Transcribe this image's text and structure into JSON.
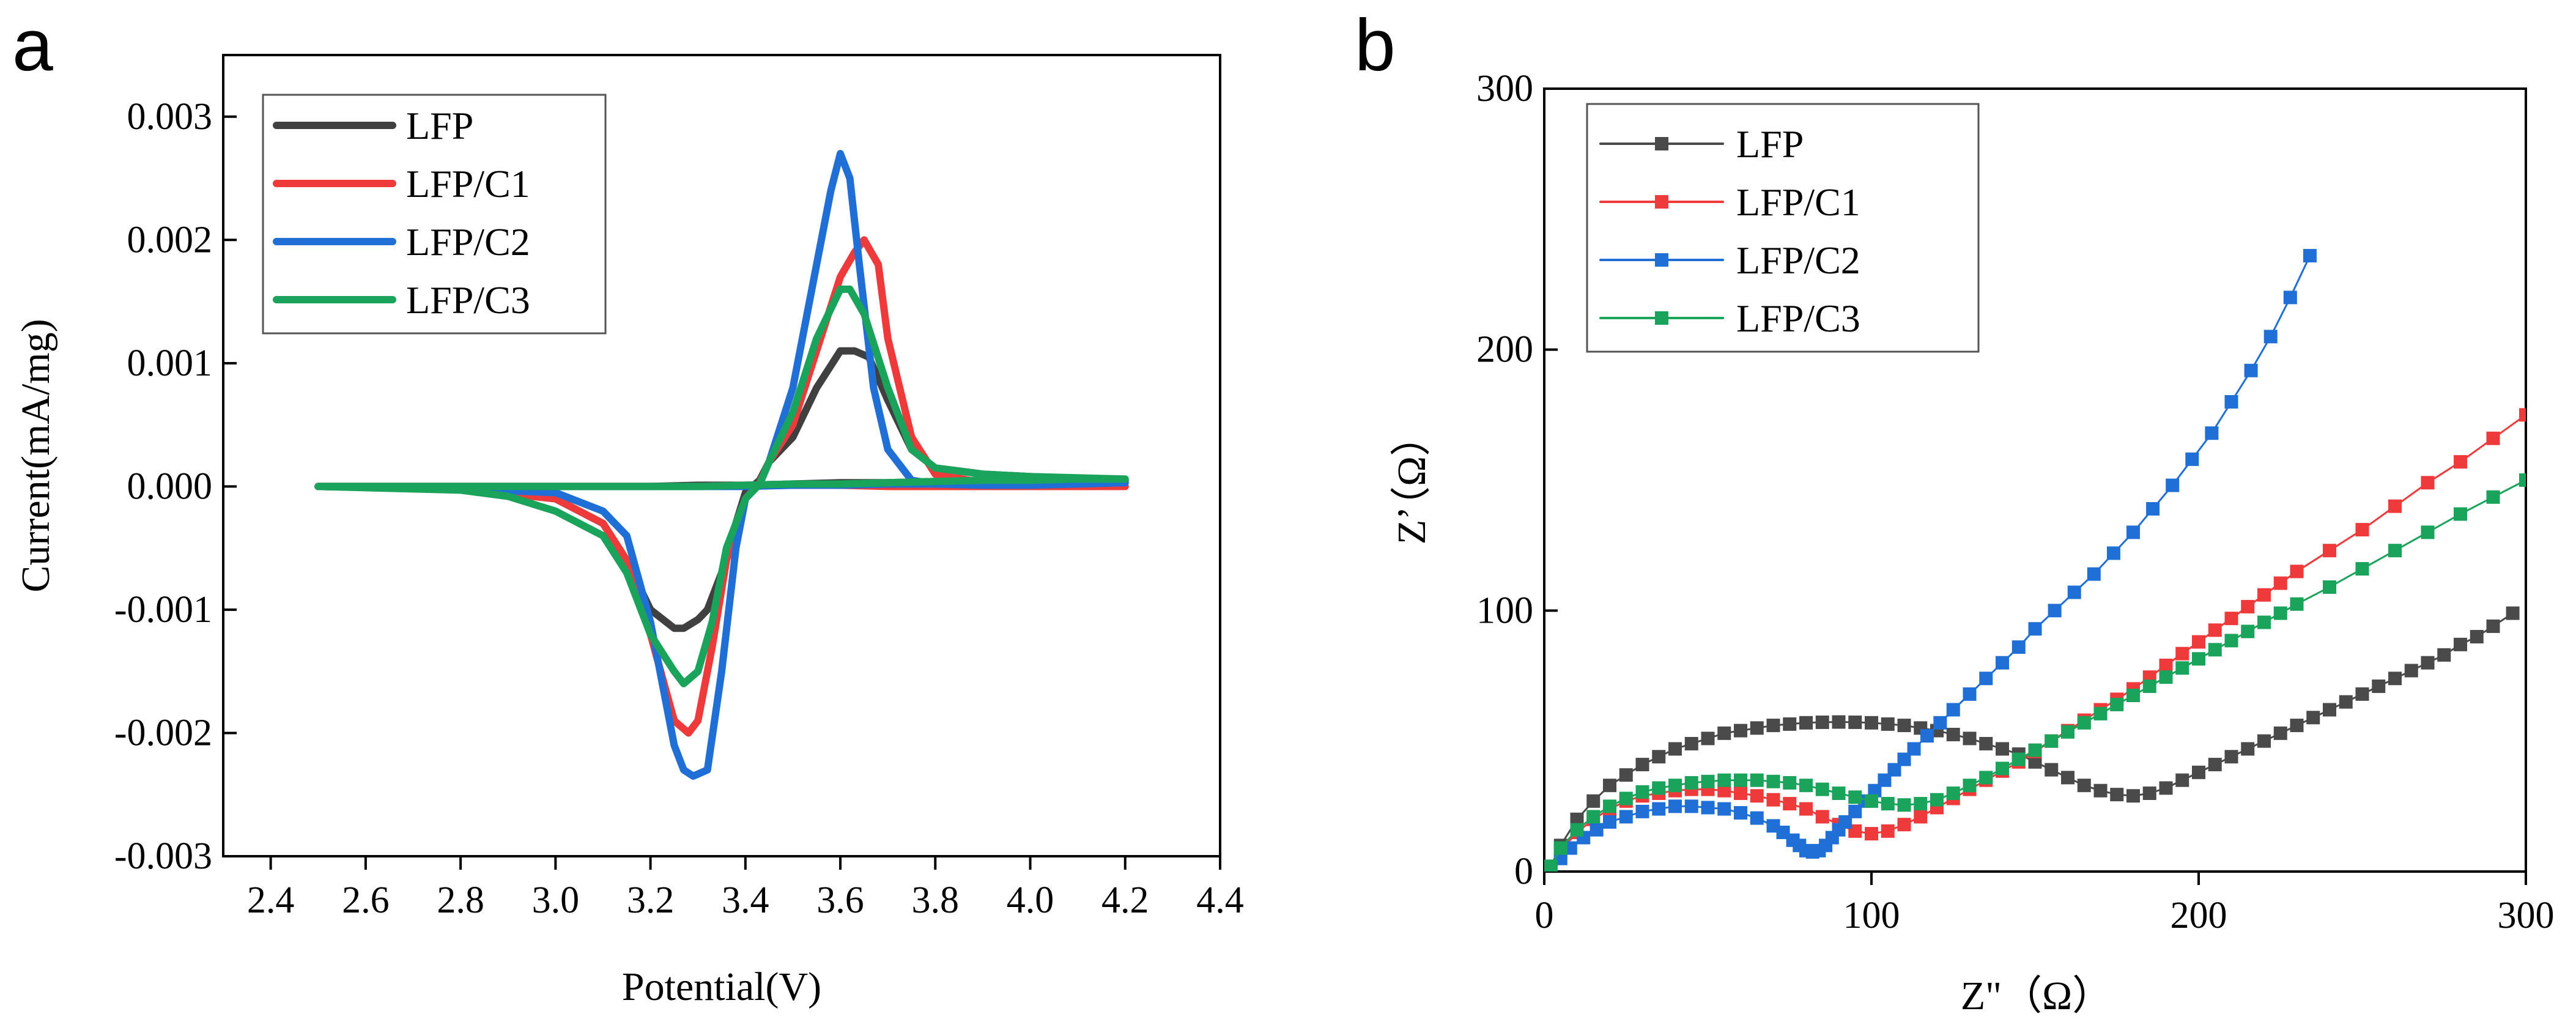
{
  "chart_data": [
    {
      "panel_label": "a",
      "type": "line",
      "xlabel": "Potential(V)",
      "ylabel": "Current(mA/mg)",
      "xlim": [
        2.3,
        4.4
      ],
      "ylim": [
        -0.003,
        0.0035
      ],
      "xticks": [
        "2.4",
        "2.6",
        "2.8",
        "3.0",
        "3.2",
        "3.4",
        "3.6",
        "3.8",
        "4.0",
        "4.2",
        "4.4"
      ],
      "yticks": [
        "-0.003",
        "-0.002",
        "-0.001",
        "0.000",
        "0.001",
        "0.002",
        "0.003"
      ],
      "legend_position": "top-left",
      "series": [
        {
          "name": "LFP",
          "color": "#404040",
          "x": [
            2.5,
            2.8,
            3.0,
            3.1,
            3.15,
            3.2,
            3.25,
            3.27,
            3.3,
            3.32,
            3.35,
            3.38,
            3.4,
            3.43,
            3.45,
            3.5,
            3.55,
            3.6,
            3.63,
            3.66,
            3.7,
            3.75,
            3.8,
            3.9,
            4.0,
            4.1,
            4.2,
            4.1,
            4.0,
            3.9,
            3.8,
            3.7,
            3.6,
            3.5,
            3.4,
            3.3,
            3.2,
            3.0,
            2.8,
            2.5
          ],
          "y": [
            0.0,
            -2e-05,
            -0.0001,
            -0.0003,
            -0.0006,
            -0.001,
            -0.00115,
            -0.00115,
            -0.00108,
            -0.001,
            -0.0007,
            -0.0003,
            -5e-05,
            5e-05,
            0.0002,
            0.0004,
            0.0008,
            0.0011,
            0.0011,
            0.00105,
            0.0007,
            0.0003,
            0.00015,
            0.0001,
            8e-05,
            6e-05,
            5e-05,
            5e-05,
            5e-05,
            4e-05,
            4e-05,
            3e-05,
            3e-05,
            2e-05,
            1e-05,
            1e-05,
            0.0,
            0.0,
            0.0,
            0.0
          ]
        },
        {
          "name": "LFP/C1",
          "color": "#ee3a3a",
          "x": [
            2.5,
            2.8,
            3.0,
            3.1,
            3.15,
            3.2,
            3.25,
            3.28,
            3.3,
            3.33,
            3.36,
            3.4,
            3.43,
            3.45,
            3.5,
            3.55,
            3.6,
            3.63,
            3.65,
            3.68,
            3.7,
            3.75,
            3.8,
            3.9,
            4.0,
            4.1,
            4.2,
            4.1,
            4.0,
            3.9,
            3.8,
            3.7,
            3.6,
            3.5,
            3.4,
            3.3,
            3.2,
            3.0,
            2.8,
            2.5
          ],
          "y": [
            0.0,
            -2e-05,
            -0.0001,
            -0.0003,
            -0.0006,
            -0.0012,
            -0.0019,
            -0.002,
            -0.0019,
            -0.0013,
            -0.0006,
            -0.0001,
            3e-05,
            0.0002,
            0.0005,
            0.0011,
            0.0017,
            0.0019,
            0.002,
            0.0018,
            0.0012,
            0.0004,
            0.0001,
            3e-05,
            2e-05,
            1e-05,
            0.0,
            0.0,
            0.0,
            0.0,
            0.0,
            0.0,
            1e-05,
            1e-05,
            1e-05,
            0.0,
            0.0,
            0.0,
            0.0,
            0.0
          ]
        },
        {
          "name": "LFP/C2",
          "color": "#1f6fd6",
          "x": [
            2.5,
            2.8,
            3.0,
            3.1,
            3.15,
            3.2,
            3.25,
            3.27,
            3.29,
            3.32,
            3.35,
            3.38,
            3.4,
            3.43,
            3.45,
            3.5,
            3.55,
            3.58,
            3.6,
            3.62,
            3.64,
            3.67,
            3.7,
            3.75,
            3.8,
            3.9,
            4.0,
            4.1,
            4.2,
            4.1,
            4.0,
            3.9,
            3.8,
            3.7,
            3.6,
            3.5,
            3.4,
            3.3,
            3.2,
            3.0,
            2.8,
            2.5
          ],
          "y": [
            0.0,
            -2e-05,
            -5e-05,
            -0.0002,
            -0.0004,
            -0.0011,
            -0.0021,
            -0.0023,
            -0.00235,
            -0.0023,
            -0.0015,
            -0.0005,
            -0.0001,
            2e-05,
            0.0002,
            0.0008,
            0.0018,
            0.0024,
            0.0027,
            0.0025,
            0.0018,
            0.0008,
            0.0003,
            5e-05,
            2e-05,
            1e-05,
            1e-05,
            2e-05,
            3e-05,
            3e-05,
            3e-05,
            2e-05,
            2e-05,
            2e-05,
            1e-05,
            1e-05,
            0.0,
            0.0,
            0.0,
            0.0,
            0.0,
            0.0
          ]
        },
        {
          "name": "LFP/C3",
          "color": "#1aa35a",
          "x": [
            2.5,
            2.8,
            2.9,
            3.0,
            3.1,
            3.15,
            3.2,
            3.25,
            3.27,
            3.3,
            3.33,
            3.36,
            3.4,
            3.43,
            3.45,
            3.5,
            3.55,
            3.6,
            3.62,
            3.65,
            3.7,
            3.75,
            3.8,
            3.9,
            4.0,
            4.1,
            4.2,
            4.1,
            4.0,
            3.9,
            3.8,
            3.7,
            3.6,
            3.5,
            3.4,
            3.3,
            3.2,
            3.0,
            2.8,
            2.5
          ],
          "y": [
            0.0,
            -3e-05,
            -8e-05,
            -0.0002,
            -0.0004,
            -0.0007,
            -0.0012,
            -0.0015,
            -0.0016,
            -0.0015,
            -0.0011,
            -0.0005,
            -0.0001,
            2e-05,
            0.0002,
            0.0006,
            0.0012,
            0.0016,
            0.0016,
            0.0014,
            0.0008,
            0.0003,
            0.00015,
            0.0001,
            8e-05,
            7e-05,
            6e-05,
            6e-05,
            5e-05,
            5e-05,
            4e-05,
            3e-05,
            2e-05,
            2e-05,
            1e-05,
            0.0,
            0.0,
            0.0,
            0.0,
            0.0
          ]
        }
      ]
    },
    {
      "panel_label": "b",
      "type": "scatter",
      "xlabel": "Z\"（Ω）",
      "ylabel": "Z’（Ω）",
      "xlim": [
        0,
        300
      ],
      "ylim": [
        0,
        300
      ],
      "xticks": [
        "0",
        "100",
        "200",
        "300"
      ],
      "yticks": [
        "0",
        "100",
        "200",
        "300"
      ],
      "legend_position": "top-left",
      "series": [
        {
          "name": "LFP",
          "color": "#4a4a4a",
          "x": [
            2,
            5,
            10,
            15,
            20,
            25,
            30,
            35,
            40,
            45,
            50,
            55,
            60,
            65,
            70,
            75,
            80,
            85,
            90,
            95,
            100,
            105,
            110,
            115,
            120,
            125,
            130,
            135,
            140,
            145,
            150,
            155,
            160,
            165,
            170,
            175,
            180,
            185,
            190,
            195,
            200,
            205,
            210,
            215,
            220,
            225,
            230,
            235,
            240,
            245,
            250,
            255,
            260,
            265,
            270,
            275,
            280,
            285,
            290,
            296
          ],
          "y": [
            2,
            10,
            20,
            27,
            33,
            37,
            41,
            44,
            47,
            49,
            51,
            53,
            54,
            55,
            56,
            56.5,
            57,
            57.2,
            57.3,
            57.2,
            57,
            56.5,
            56,
            55,
            54,
            52.5,
            51,
            49,
            47,
            45,
            42,
            39,
            36,
            33,
            31,
            29.5,
            29,
            30,
            32,
            35,
            38,
            41,
            44,
            47,
            50,
            53,
            56,
            59,
            62,
            65,
            68,
            71,
            74,
            77,
            80,
            83,
            87,
            90,
            94,
            99
          ]
        },
        {
          "name": "LFP/C1",
          "color": "#ee3a3a",
          "x": [
            2,
            5,
            10,
            15,
            20,
            25,
            30,
            35,
            40,
            45,
            50,
            55,
            60,
            65,
            70,
            75,
            80,
            85,
            90,
            95,
            100,
            105,
            110,
            115,
            120,
            125,
            130,
            135,
            140,
            145,
            150,
            155,
            160,
            165,
            170,
            175,
            180,
            185,
            190,
            195,
            200,
            205,
            210,
            215,
            220,
            225,
            230,
            240,
            250,
            260,
            270,
            280,
            290,
            300
          ],
          "y": [
            2,
            8,
            15,
            20,
            24,
            27,
            29,
            30,
            31,
            31.5,
            31.5,
            31,
            30,
            29,
            27.5,
            26,
            24,
            21,
            18,
            15.5,
            14.5,
            15.5,
            18,
            21,
            24.5,
            28,
            31.5,
            35,
            38.5,
            42,
            46,
            50,
            54,
            58,
            62,
            66,
            70,
            74.5,
            79,
            83.5,
            88,
            92.5,
            97,
            101.5,
            106,
            110.5,
            115,
            123,
            131,
            140,
            149,
            157,
            166,
            175
          ]
        },
        {
          "name": "LFP/C2",
          "color": "#1f6fd6",
          "x": [
            2,
            5,
            8,
            12,
            16,
            20,
            25,
            30,
            35,
            40,
            45,
            50,
            55,
            60,
            65,
            70,
            73,
            76,
            78,
            80,
            82,
            84,
            86,
            88,
            90,
            92,
            95,
            98,
            101,
            104,
            107,
            110,
            113,
            117,
            121,
            125,
            130,
            135,
            140,
            145,
            150,
            156,
            162,
            168,
            174,
            180,
            186,
            192,
            198,
            204,
            210,
            216,
            222,
            228,
            234
          ],
          "y": [
            1,
            5,
            9,
            13,
            16,
            19,
            21,
            23,
            24,
            25,
            25,
            24.5,
            24,
            22.5,
            20.5,
            17.5,
            15,
            12,
            10,
            8,
            7.5,
            8,
            10,
            13,
            16,
            19,
            23,
            27,
            31,
            35,
            39,
            43,
            47,
            52,
            57,
            62,
            68,
            74,
            80,
            86,
            93,
            100,
            107,
            114,
            122,
            130,
            139,
            148,
            158,
            168,
            180,
            192,
            205,
            220,
            236
          ]
        },
        {
          "name": "LFP/C3",
          "color": "#1aa35a",
          "x": [
            2,
            5,
            10,
            15,
            20,
            25,
            30,
            35,
            40,
            45,
            50,
            55,
            60,
            65,
            70,
            75,
            80,
            85,
            90,
            95,
            100,
            105,
            110,
            115,
            120,
            125,
            130,
            135,
            140,
            145,
            150,
            155,
            160,
            165,
            170,
            175,
            180,
            185,
            190,
            195,
            200,
            205,
            210,
            215,
            220,
            225,
            230,
            240,
            250,
            260,
            270,
            280,
            290,
            300
          ],
          "y": [
            2,
            9,
            16,
            21,
            25,
            28,
            30.5,
            32,
            33,
            34,
            34.5,
            35,
            35,
            35,
            34.5,
            34,
            33,
            31.5,
            30,
            28.5,
            27,
            26,
            25.5,
            26,
            27.5,
            30,
            33,
            36,
            39.5,
            43,
            46.5,
            50,
            53.5,
            57,
            60.5,
            64,
            67.5,
            71,
            74.5,
            78,
            81.5,
            85,
            88.5,
            92,
            95.5,
            99,
            102.5,
            109,
            116,
            123,
            130,
            137,
            143.5,
            150
          ]
        }
      ]
    }
  ]
}
